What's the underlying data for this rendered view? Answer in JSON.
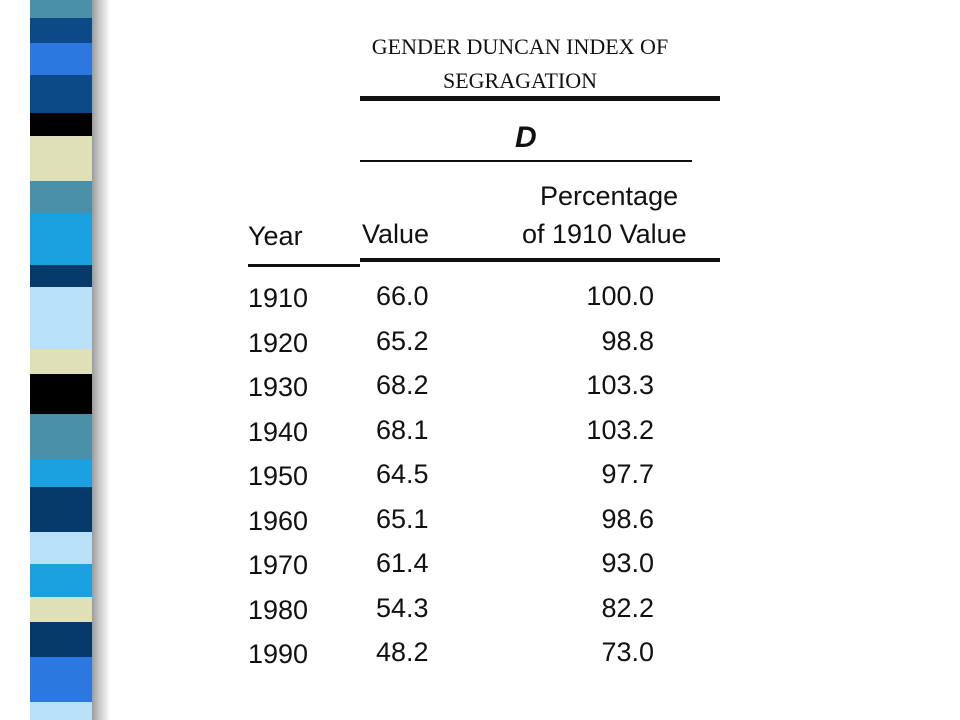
{
  "title": "GENDER DUNCAN INDEX OF SEGRAGATION",
  "table": {
    "group_header": "D",
    "columns": {
      "year": "Year",
      "value": "Value",
      "percentage_line1": "Percentage",
      "percentage_line2": "of 1910 Value"
    },
    "rows": [
      {
        "year": "1910",
        "value": "66.0",
        "pct": "100.0"
      },
      {
        "year": "1920",
        "value": "65.2",
        "pct": "98.8"
      },
      {
        "year": "1930",
        "value": "68.2",
        "pct": "103.3"
      },
      {
        "year": "1940",
        "value": "68.1",
        "pct": "103.2"
      },
      {
        "year": "1950",
        "value": "64.5",
        "pct": "97.7"
      },
      {
        "year": "1960",
        "value": "65.1",
        "pct": "98.6"
      },
      {
        "year": "1970",
        "value": "61.4",
        "pct": "93.0"
      },
      {
        "year": "1980",
        "value": "54.3",
        "pct": "82.2"
      },
      {
        "year": "1990",
        "value": "48.2",
        "pct": "73.0"
      }
    ]
  },
  "strip_colors": [
    "#4a8fa8",
    "#0b4a86",
    "#2b78e0",
    "#000000",
    "#e0e0b8",
    "#b8e0f8",
    "#1ba0e0",
    "#063a6b"
  ]
}
